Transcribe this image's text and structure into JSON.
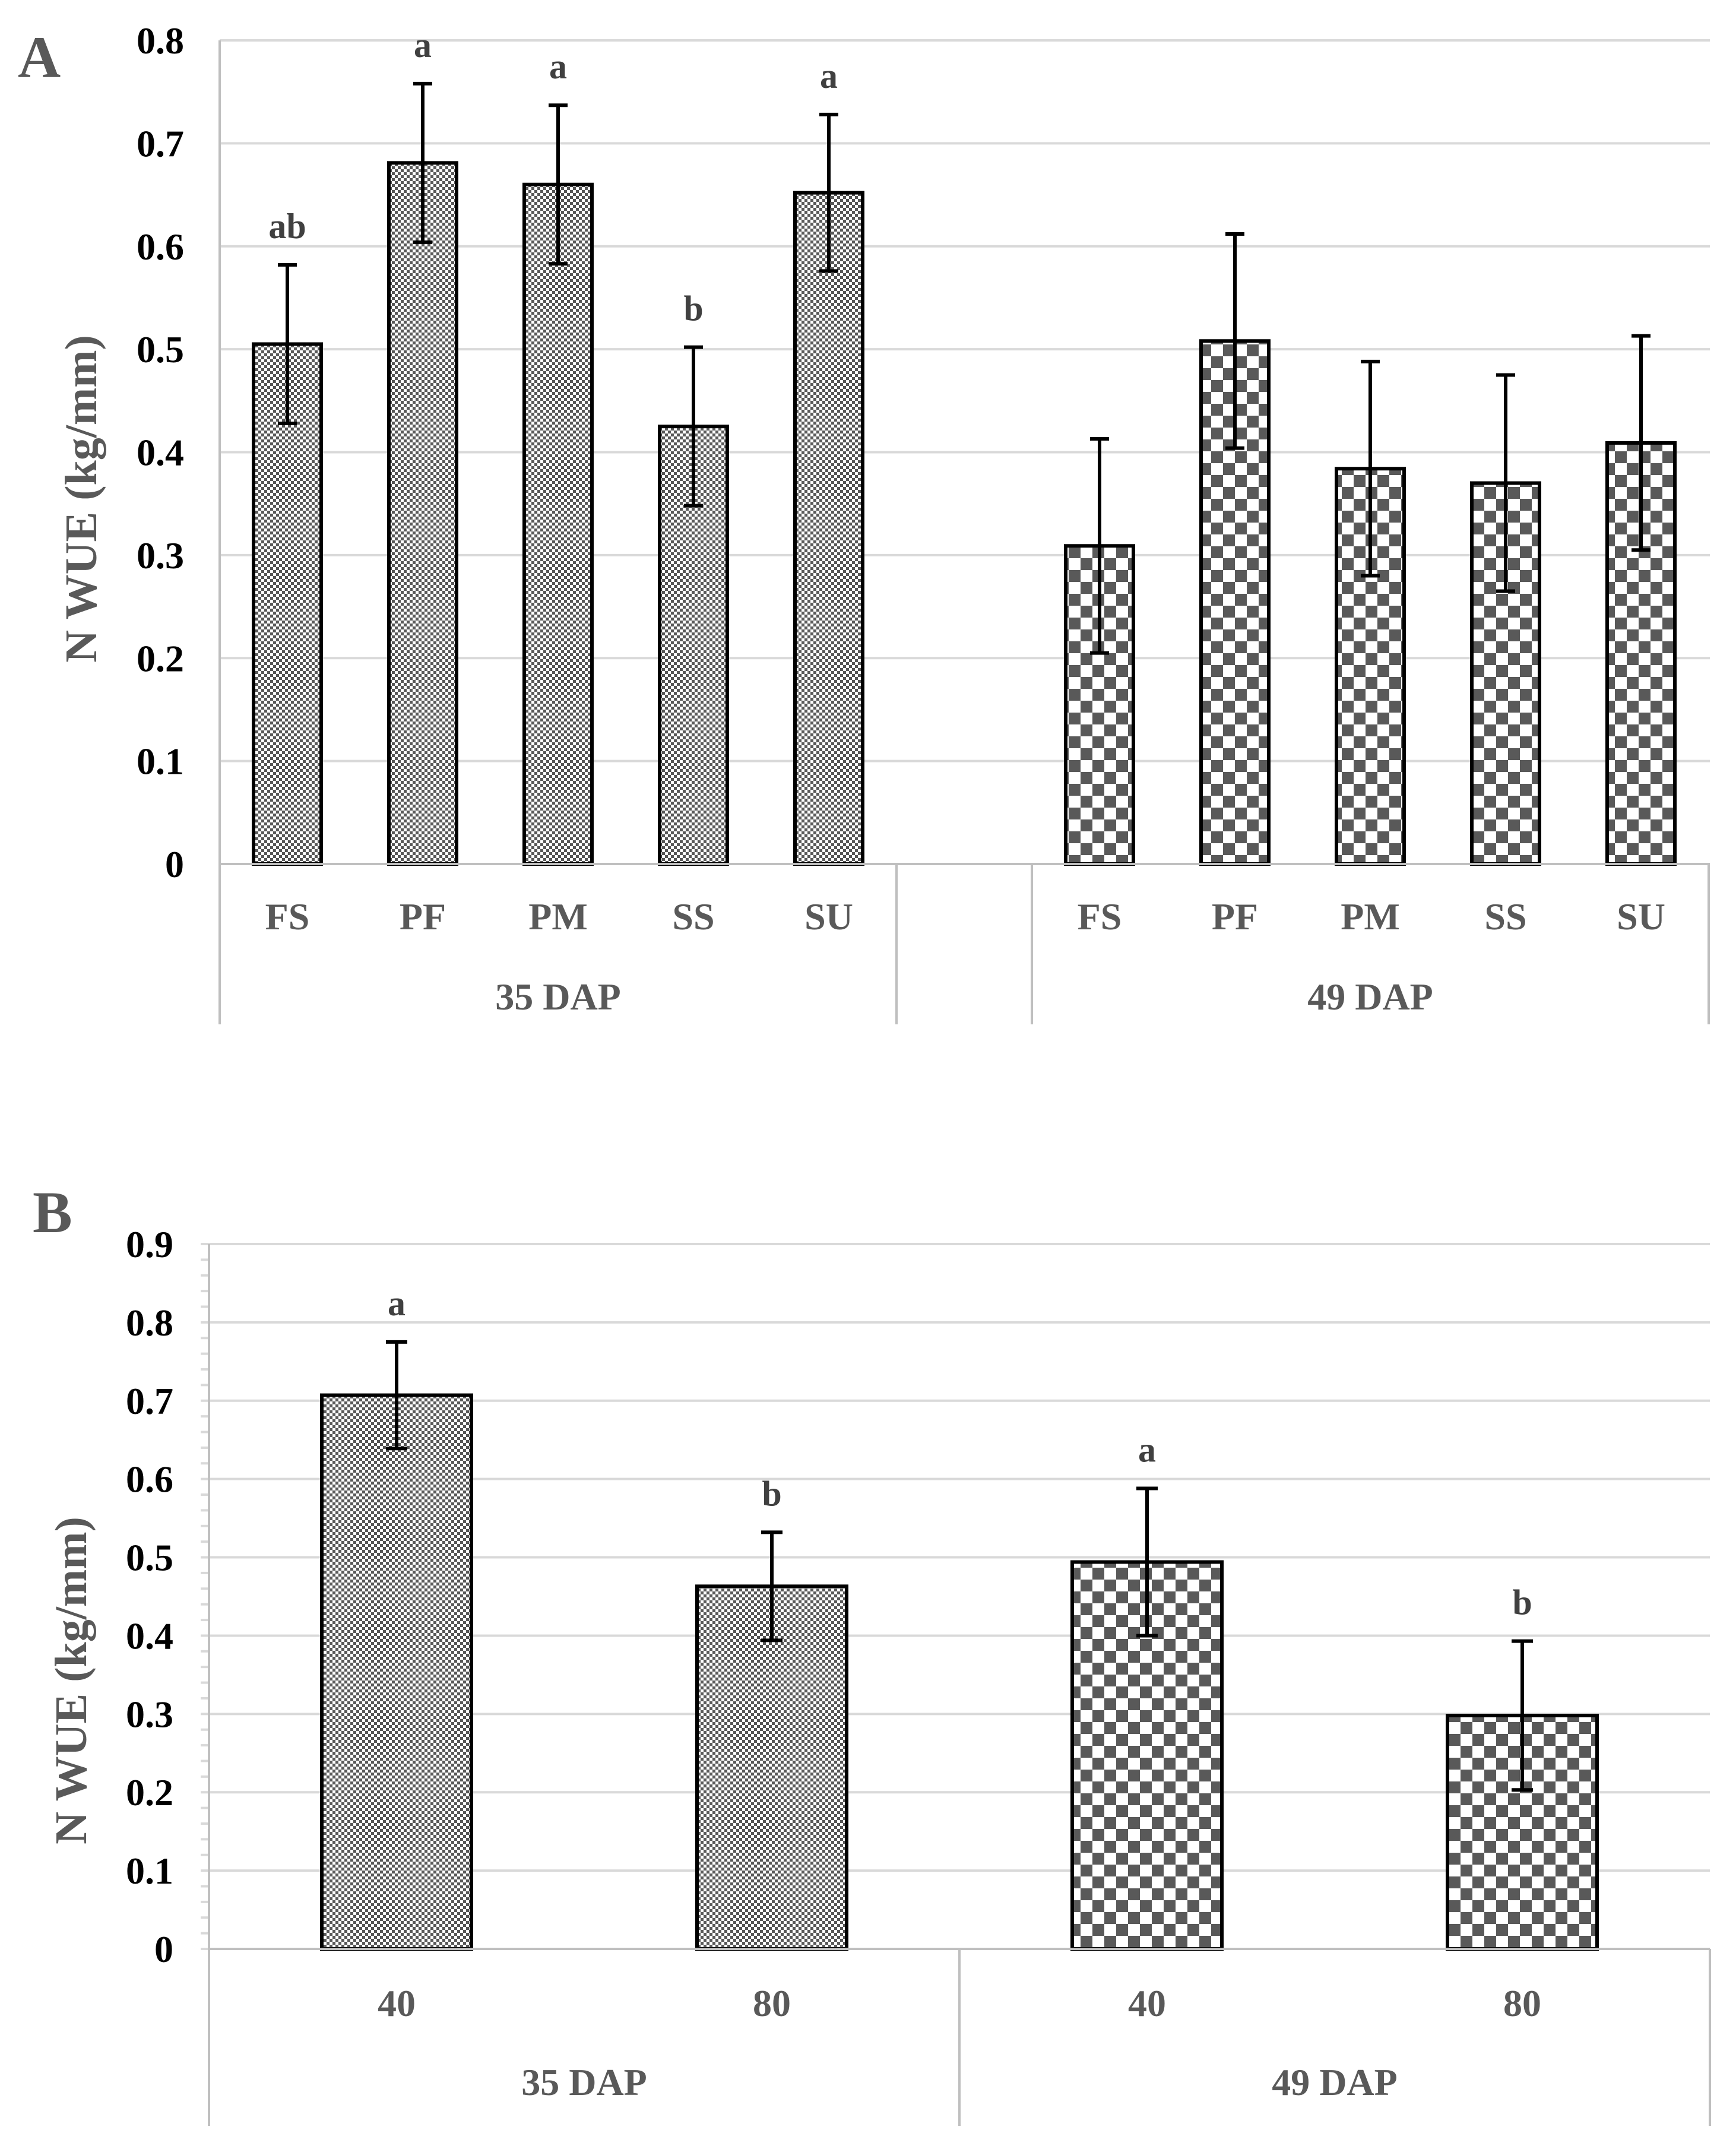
{
  "chart_data": [
    {
      "panel": "A",
      "type": "bar",
      "ylabel": "N WUE (kg/mm)",
      "ylim": [
        0,
        0.8
      ],
      "yticks": [
        "0",
        "0.1",
        "0.2",
        "0.3",
        "0.4",
        "0.5",
        "0.6",
        "0.7",
        "0.8"
      ],
      "grid": true,
      "groups": [
        {
          "name": "35 DAP",
          "pattern": "fine",
          "bars": [
            {
              "category": "FS",
              "value": 0.505,
              "error": 0.077,
              "letter": "ab"
            },
            {
              "category": "PF",
              "value": 0.681,
              "error": 0.077,
              "letter": "a"
            },
            {
              "category": "PM",
              "value": 0.66,
              "error": 0.077,
              "letter": "a"
            },
            {
              "category": "SS",
              "value": 0.425,
              "error": 0.077,
              "letter": "b"
            },
            {
              "category": "SU",
              "value": 0.652,
              "error": 0.076,
              "letter": "a"
            }
          ]
        },
        {
          "name": "",
          "pattern": "none",
          "bars": []
        },
        {
          "name": "49 DAP",
          "pattern": "coarse",
          "bars": [
            {
              "category": "FS",
              "value": 0.309,
              "error": 0.104,
              "letter": ""
            },
            {
              "category": "PF",
              "value": 0.508,
              "error": 0.104,
              "letter": ""
            },
            {
              "category": "PM",
              "value": 0.384,
              "error": 0.104,
              "letter": ""
            },
            {
              "category": "SS",
              "value": 0.37,
              "error": 0.105,
              "letter": ""
            },
            {
              "category": "SU",
              "value": 0.409,
              "error": 0.104,
              "letter": ""
            }
          ]
        }
      ]
    },
    {
      "panel": "B",
      "type": "bar",
      "ylabel": "N WUE (kg/mm)",
      "ylim": [
        0,
        0.9
      ],
      "yticks": [
        "0",
        "0.1",
        "0.2",
        "0.3",
        "0.4",
        "0.5",
        "0.6",
        "0.7",
        "0.8",
        "0.9"
      ],
      "grid": true,
      "minor_ticks": true,
      "groups": [
        {
          "name": "35 DAP",
          "pattern": "fine",
          "bars": [
            {
              "category": "40",
              "value": 0.707,
              "error": 0.068,
              "letter": "a"
            },
            {
              "category": "80",
              "value": 0.463,
              "error": 0.069,
              "letter": "b"
            }
          ]
        },
        {
          "name": "49 DAP",
          "pattern": "coarse",
          "bars": [
            {
              "category": "40",
              "value": 0.494,
              "error": 0.094,
              "letter": "a"
            },
            {
              "category": "80",
              "value": 0.298,
              "error": 0.095,
              "letter": "b"
            }
          ]
        }
      ]
    }
  ],
  "colors": {
    "bar_fill_dark": "#595959",
    "grid": "#d9d9d9",
    "axis": "#bfbfbf",
    "panel_label": "#595959"
  }
}
